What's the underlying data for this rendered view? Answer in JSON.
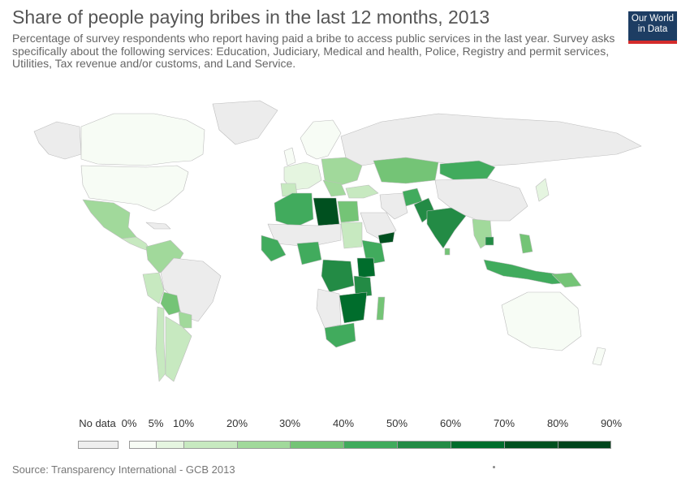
{
  "header": {
    "title": "Share of people paying bribes in the last 12 months, 2013",
    "subtitle": "Percentage of survey respondents who report having paid a bribe to access public services in the last year. Survey asks specifically about the following services: Education, Judiciary, Medical and health, Police, Registry and permit services, Utilities, Tax revenue and/or customs, and Land Service."
  },
  "logo": {
    "line1": "Our World",
    "line2": "in Data"
  },
  "legend": {
    "no_data_label": "No data",
    "no_data_color": "#eeeeee",
    "ticks": [
      "0%",
      "5%",
      "10%",
      "20%",
      "30%",
      "40%",
      "50%",
      "60%",
      "70%",
      "80%",
      "90%"
    ],
    "colors": [
      "#f7fcf5",
      "#e5f5e0",
      "#c7e9c0",
      "#a1d99b",
      "#74c476",
      "#41ab5d",
      "#238b45",
      "#006d2c",
      "#00501f",
      "#00441b"
    ]
  },
  "colors": {
    "land_no_data": "#ececec",
    "border": "#bdbdbd"
  },
  "source": "Source: Transparency International - GCB 2013"
}
